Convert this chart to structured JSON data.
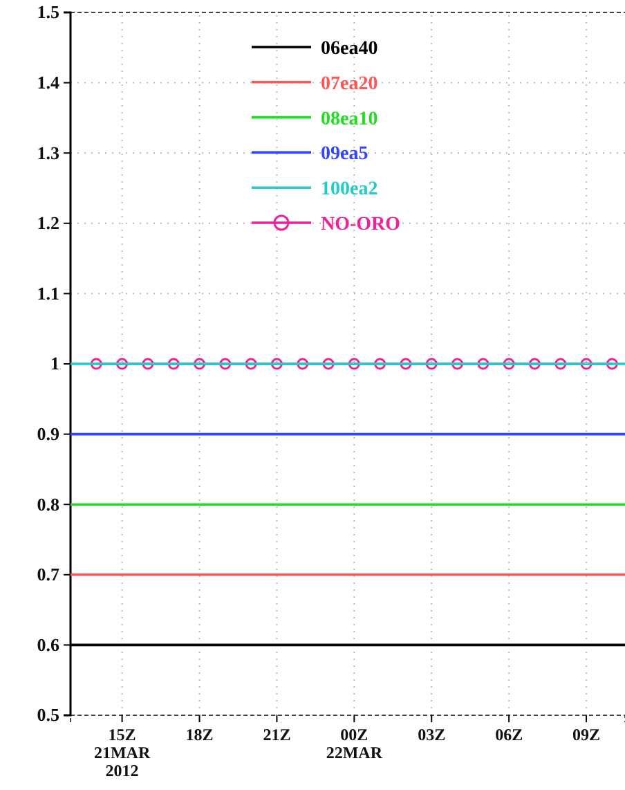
{
  "chart_data": {
    "type": "line",
    "xlim": [
      "2012-03-21T13:00",
      "2012-03-22T10:30"
    ],
    "ylim": [
      0.5,
      1.5
    ],
    "xticks": [
      {
        "value": "2012-03-21T15:00",
        "label": "15Z\n21MAR\n2012"
      },
      {
        "value": "2012-03-21T18:00",
        "label": "18Z"
      },
      {
        "value": "2012-03-21T21:00",
        "label": "21Z"
      },
      {
        "value": "2012-03-22T00:00",
        "label": "00Z\n22MAR"
      },
      {
        "value": "2012-03-22T03:00",
        "label": "03Z"
      },
      {
        "value": "2012-03-22T06:00",
        "label": "06Z"
      },
      {
        "value": "2012-03-22T09:00",
        "label": "09Z"
      }
    ],
    "yticks": [
      0.5,
      0.6,
      0.7,
      0.8,
      0.9,
      1,
      1.1,
      1.2,
      1.3,
      1.4,
      1.5
    ],
    "grid": true,
    "legend": "top",
    "series": [
      {
        "name": "06ea40",
        "color": "#000000",
        "x": [
          "2012-03-21T13:00",
          "2012-03-22T10:30"
        ],
        "values": [
          0.6,
          0.6
        ]
      },
      {
        "name": "07ea20",
        "color": "#ff5555",
        "x": [
          "2012-03-21T13:00",
          "2012-03-22T10:30"
        ],
        "values": [
          0.7,
          0.7
        ]
      },
      {
        "name": "08ea10",
        "color": "#22dd22",
        "x": [
          "2012-03-21T13:00",
          "2012-03-22T10:30"
        ],
        "values": [
          0.8,
          0.8
        ]
      },
      {
        "name": "09ea5",
        "color": "#3344ff",
        "x": [
          "2012-03-21T13:00",
          "2012-03-22T10:30"
        ],
        "values": [
          0.9,
          0.9
        ]
      },
      {
        "name": "100ea2",
        "color": "#22cccc",
        "x": [
          "2012-03-21T13:00",
          "2012-03-22T10:30"
        ],
        "values": [
          1,
          1
        ]
      },
      {
        "name": "NO-ORO",
        "color": "#ee2299",
        "marker": "circle",
        "x": [
          "2012-03-21T14:00",
          "2012-03-21T15:00",
          "2012-03-21T16:00",
          "2012-03-21T17:00",
          "2012-03-21T18:00",
          "2012-03-21T19:00",
          "2012-03-21T20:00",
          "2012-03-21T21:00",
          "2012-03-21T22:00",
          "2012-03-21T23:00",
          "2012-03-22T00:00",
          "2012-03-22T01:00",
          "2012-03-22T02:00",
          "2012-03-22T03:00",
          "2012-03-22T04:00",
          "2012-03-22T05:00",
          "2012-03-22T06:00",
          "2012-03-22T07:00",
          "2012-03-22T08:00",
          "2012-03-22T09:00",
          "2012-03-22T10:00"
        ],
        "values": [
          1,
          1,
          1,
          1,
          1,
          1,
          1,
          1,
          1,
          1,
          1,
          1,
          1,
          1,
          1,
          1,
          1,
          1,
          1,
          1,
          1
        ]
      }
    ]
  }
}
